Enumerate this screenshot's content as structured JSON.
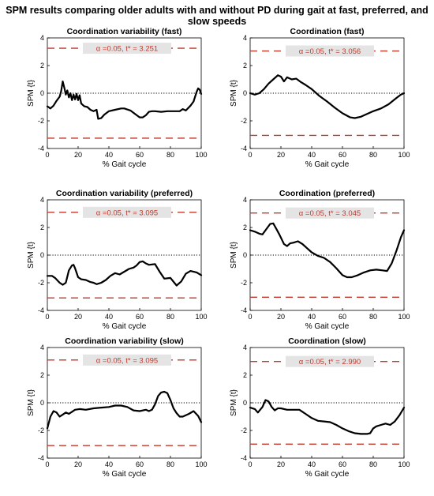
{
  "page": {
    "title": "SPM results comparing older adults with and without PD during gait at fast, preferred, and slow speeds"
  },
  "chart_data": [
    {
      "type": "line",
      "title": "Coordination variability (fast)",
      "xlabel": "% Gait cycle",
      "ylabel": "SPM {t}",
      "xlim": [
        0,
        100
      ],
      "ylim": [
        -4,
        4
      ],
      "x_ticks": [
        "0",
        "20",
        "40",
        "60",
        "80",
        "100"
      ],
      "y_ticks": [
        "4",
        "2",
        "0",
        "-2",
        "-4"
      ],
      "threshold": 3.251,
      "annotation": "α =0.05,     t* = 3.251",
      "series_color": "#000000",
      "threshold_color": "#c0392b",
      "x": [
        0,
        2,
        4,
        6,
        8,
        9,
        10,
        11,
        12,
        13,
        14,
        15,
        16,
        17,
        18,
        19,
        20,
        21,
        22,
        24,
        26,
        28,
        30,
        32,
        33,
        35,
        37,
        40,
        44,
        48,
        50,
        54,
        57,
        60,
        62,
        64,
        66,
        68,
        70,
        74,
        78,
        82,
        86,
        88,
        90,
        93,
        95,
        97,
        98,
        99,
        100
      ],
      "y": [
        -0.95,
        -1.1,
        -0.9,
        -0.55,
        -0.25,
        0.15,
        0.85,
        0.4,
        -0.1,
        0.2,
        -0.3,
        0.0,
        -0.5,
        -0.1,
        -0.45,
        -0.05,
        -0.5,
        -0.15,
        -0.75,
        -0.95,
        -1.0,
        -1.2,
        -1.3,
        -1.2,
        -1.85,
        -1.8,
        -1.55,
        -1.3,
        -1.2,
        -1.1,
        -1.1,
        -1.25,
        -1.5,
        -1.75,
        -1.75,
        -1.6,
        -1.35,
        -1.3,
        -1.3,
        -1.35,
        -1.3,
        -1.3,
        -1.3,
        -1.15,
        -1.25,
        -0.9,
        -0.6,
        0.1,
        0.35,
        0.25,
        -0.05
      ]
    },
    {
      "type": "line",
      "title": "Coordination (fast)",
      "xlabel": "% Gait cycle",
      "ylabel": "SPM {t}",
      "xlim": [
        0,
        100
      ],
      "ylim": [
        -4,
        4
      ],
      "x_ticks": [
        "0",
        "20",
        "40",
        "60",
        "80",
        "100"
      ],
      "y_ticks": [
        "4",
        "2",
        "0",
        "-2",
        "-4"
      ],
      "threshold": 3.056,
      "annotation": "α =0.05,     t* = 3.056",
      "series_color": "#000000",
      "threshold_color": "#c0392b",
      "x": [
        0,
        3,
        6,
        9,
        12,
        15,
        18,
        20,
        22,
        24,
        27,
        30,
        33,
        36,
        40,
        45,
        50,
        55,
        60,
        65,
        68,
        72,
        76,
        80,
        85,
        90,
        95,
        98,
        100
      ],
      "y": [
        0,
        -0.1,
        0.0,
        0.3,
        0.7,
        1.0,
        1.3,
        1.2,
        0.85,
        1.15,
        1.0,
        1.05,
        0.8,
        0.6,
        0.3,
        -0.2,
        -0.6,
        -1.05,
        -1.45,
        -1.75,
        -1.8,
        -1.7,
        -1.5,
        -1.3,
        -1.1,
        -0.8,
        -0.35,
        -0.1,
        0
      ]
    },
    {
      "type": "line",
      "title": "Coordination variability (preferred)",
      "xlabel": "% Gait cycle",
      "ylabel": "SPM {t}",
      "xlim": [
        0,
        100
      ],
      "ylim": [
        -4,
        4
      ],
      "x_ticks": [
        "0",
        "20",
        "40",
        "60",
        "80",
        "100"
      ],
      "y_ticks": [
        "4",
        "2",
        "0",
        "-2",
        "-4"
      ],
      "threshold": 3.095,
      "annotation": "α =0.05,     t* = 3.095",
      "series_color": "#000000",
      "threshold_color": "#c0392b",
      "x": [
        0,
        3,
        5,
        8,
        10,
        12,
        14,
        16,
        17,
        18,
        20,
        22,
        25,
        28,
        30,
        32,
        35,
        38,
        41,
        44,
        47,
        50,
        53,
        56,
        58,
        60,
        62,
        64,
        66,
        70,
        73,
        76,
        80,
        84,
        87,
        90,
        93,
        97,
        100
      ],
      "y": [
        -1.5,
        -1.5,
        -1.65,
        -2.0,
        -2.15,
        -2.0,
        -1.1,
        -0.75,
        -0.7,
        -0.95,
        -1.6,
        -1.75,
        -1.8,
        -1.95,
        -2.0,
        -2.1,
        -2.0,
        -1.8,
        -1.5,
        -1.3,
        -1.4,
        -1.2,
        -1.0,
        -0.9,
        -0.75,
        -0.5,
        -0.45,
        -0.6,
        -0.7,
        -0.65,
        -1.2,
        -1.7,
        -1.65,
        -2.2,
        -1.9,
        -1.35,
        -1.15,
        -1.25,
        -1.45
      ]
    },
    {
      "type": "line",
      "title": "Coordination (preferred)",
      "xlabel": "% Gait cycle",
      "ylabel": "SPM {t}",
      "xlim": [
        0,
        100
      ],
      "ylim": [
        -4,
        4
      ],
      "x_ticks": [
        "0",
        "20",
        "40",
        "60",
        "80",
        "100"
      ],
      "y_ticks": [
        "4",
        "2",
        "0",
        "-2",
        "-4"
      ],
      "threshold": 3.045,
      "annotation": "α =0.05,     t* = 3.045",
      "series_color": "#000000",
      "threshold_color": "#c0392b",
      "x": [
        0,
        3,
        6,
        8,
        10,
        13,
        15,
        17,
        19,
        22,
        24,
        26,
        28,
        31,
        34,
        37,
        40,
        44,
        48,
        52,
        56,
        60,
        63,
        66,
        70,
        74,
        78,
        82,
        86,
        89,
        92,
        95,
        98,
        100
      ],
      "y": [
        1.8,
        1.7,
        1.55,
        1.5,
        1.8,
        2.25,
        2.3,
        1.9,
        1.5,
        0.8,
        0.65,
        0.85,
        0.9,
        1.0,
        0.8,
        0.5,
        0.2,
        -0.05,
        -0.2,
        -0.5,
        -0.95,
        -1.45,
        -1.6,
        -1.6,
        -1.45,
        -1.25,
        -1.1,
        -1.05,
        -1.1,
        -1.15,
        -0.6,
        0.3,
        1.3,
        1.8
      ]
    },
    {
      "type": "line",
      "title": "Coordination variability (slow)",
      "xlabel": "% Gait cycle",
      "ylabel": "SPM {t}",
      "xlim": [
        0,
        100
      ],
      "ylim": [
        -4,
        4
      ],
      "x_ticks": [
        "0",
        "20",
        "40",
        "60",
        "80",
        "100"
      ],
      "y_ticks": [
        "4",
        "2",
        "0",
        "-2",
        "-4"
      ],
      "threshold": 3.095,
      "annotation": "α =0.05,     t* = 3.095",
      "series_color": "#000000",
      "threshold_color": "#c0392b",
      "x": [
        0,
        2,
        4,
        6,
        8,
        10,
        12,
        14,
        16,
        18,
        21,
        25,
        30,
        35,
        40,
        44,
        48,
        52,
        56,
        60,
        64,
        66,
        68,
        70,
        72,
        74,
        76,
        78,
        80,
        82,
        84,
        86,
        88,
        90,
        92,
        95,
        98,
        100
      ],
      "y": [
        -1.85,
        -1.0,
        -0.6,
        -0.7,
        -1.0,
        -0.85,
        -0.7,
        -0.8,
        -0.65,
        -0.5,
        -0.45,
        -0.5,
        -0.4,
        -0.35,
        -0.3,
        -0.2,
        -0.2,
        -0.3,
        -0.55,
        -0.6,
        -0.5,
        -0.6,
        -0.5,
        -0.1,
        0.5,
        0.75,
        0.8,
        0.7,
        0.2,
        -0.4,
        -0.75,
        -1.0,
        -1.0,
        -0.9,
        -0.8,
        -0.6,
        -0.95,
        -1.4
      ]
    },
    {
      "type": "line",
      "title": "Coordination (slow)",
      "xlabel": "% Gait cycle",
      "ylabel": "SPM {t}",
      "xlim": [
        0,
        100
      ],
      "ylim": [
        -4,
        4
      ],
      "x_ticks": [
        "0",
        "20",
        "40",
        "60",
        "80",
        "100"
      ],
      "y_ticks": [
        "4",
        "2",
        "0",
        "-2",
        "-4"
      ],
      "threshold": 2.99,
      "annotation": "α =0.05,     t* = 2.990",
      "series_color": "#000000",
      "threshold_color": "#c0392b",
      "x": [
        0,
        3,
        5,
        8,
        10,
        12,
        14,
        16,
        18,
        20,
        24,
        28,
        32,
        36,
        40,
        44,
        48,
        52,
        56,
        60,
        64,
        68,
        72,
        76,
        78,
        80,
        82,
        85,
        88,
        91,
        94,
        97,
        100
      ],
      "y": [
        -0.35,
        -0.45,
        -0.7,
        -0.3,
        0.2,
        0.1,
        -0.3,
        -0.55,
        -0.4,
        -0.4,
        -0.5,
        -0.5,
        -0.5,
        -0.8,
        -1.1,
        -1.3,
        -1.35,
        -1.4,
        -1.6,
        -1.85,
        -2.05,
        -2.2,
        -2.25,
        -2.25,
        -2.2,
        -1.85,
        -1.7,
        -1.6,
        -1.5,
        -1.6,
        -1.35,
        -0.9,
        -0.35
      ]
    }
  ]
}
